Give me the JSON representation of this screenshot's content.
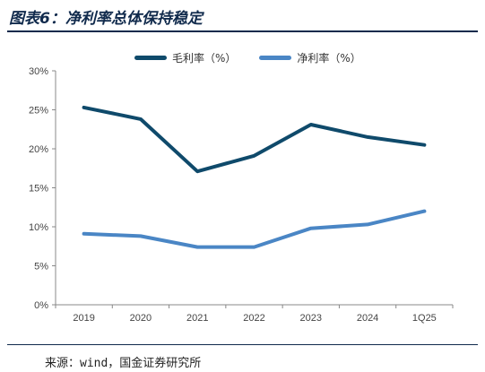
{
  "header": {
    "figure_title": "图表6：净利率总体保持稳定"
  },
  "footer": {
    "source_text": "来源：wind，国金证券研究所"
  },
  "colors": {
    "title": "#102a4c",
    "series_gross": "#0f4a6b",
    "series_net": "#4a86c5",
    "axis": "#888888"
  },
  "chart_data": {
    "type": "line",
    "x": [
      "2019",
      "2020",
      "2021",
      "2022",
      "2023",
      "2024",
      "1Q25"
    ],
    "series": [
      {
        "name": "毛利率（%）",
        "values": [
          25.3,
          23.8,
          17.1,
          19.1,
          23.1,
          21.5,
          20.5
        ]
      },
      {
        "name": "净利率（%）",
        "values": [
          9.1,
          8.8,
          7.4,
          7.4,
          9.8,
          10.3,
          12.0
        ]
      }
    ],
    "y_ticks": [
      "0%",
      "5%",
      "10%",
      "15%",
      "20%",
      "25%",
      "30%"
    ],
    "ylim": [
      0,
      30
    ],
    "grid": false,
    "legend_position": "top"
  }
}
